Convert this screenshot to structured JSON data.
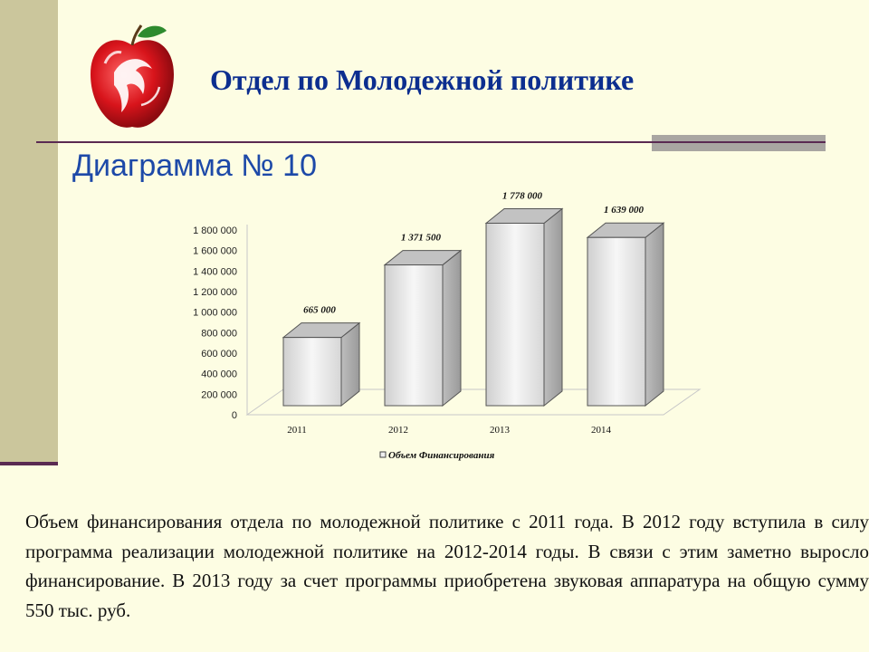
{
  "header": {
    "department_title": "Отдел по Молодежной политике"
  },
  "diagram_title": "Диаграмма № 10",
  "description": "Объем финансирования отдела по молодежной политике  с  2011  года. В 2012 году вступила в силу программа реализации молодежной политике на 2012-2014 годы. В связи с этим заметно выросло финансирование. В 2013 году за счет программы приобретена звуковая аппаратура на  общую сумму 550 тыс. руб.",
  "logo": {
    "icon": "red-apple-horse-logo"
  },
  "colors": {
    "title_blue": "#0c2e8f",
    "subtitle_blue": "#1d49a8",
    "background": "#fdfde3",
    "side_band": "#cbc69c",
    "rule": "#5a2a52"
  },
  "chart_data": {
    "type": "bar",
    "style": "3d-column",
    "categories": [
      "2011",
      "2012",
      "2013",
      "2014"
    ],
    "series": [
      {
        "name": "Объем Финансирования",
        "values": [
          665000,
          1371500,
          1778000,
          1639000
        ]
      }
    ],
    "data_labels": [
      "665 000",
      "1 371 500",
      "1 778 000",
      "1 639 000"
    ],
    "y_ticks": [
      "0",
      "200 000",
      "400 000",
      "600 000",
      "800 000",
      "1 000 000",
      "1 200 000",
      "1 400 000",
      "1 600 000",
      "1 800 000"
    ],
    "ylim": [
      0,
      1800000
    ],
    "grid": false,
    "legend_position": "bottom"
  }
}
